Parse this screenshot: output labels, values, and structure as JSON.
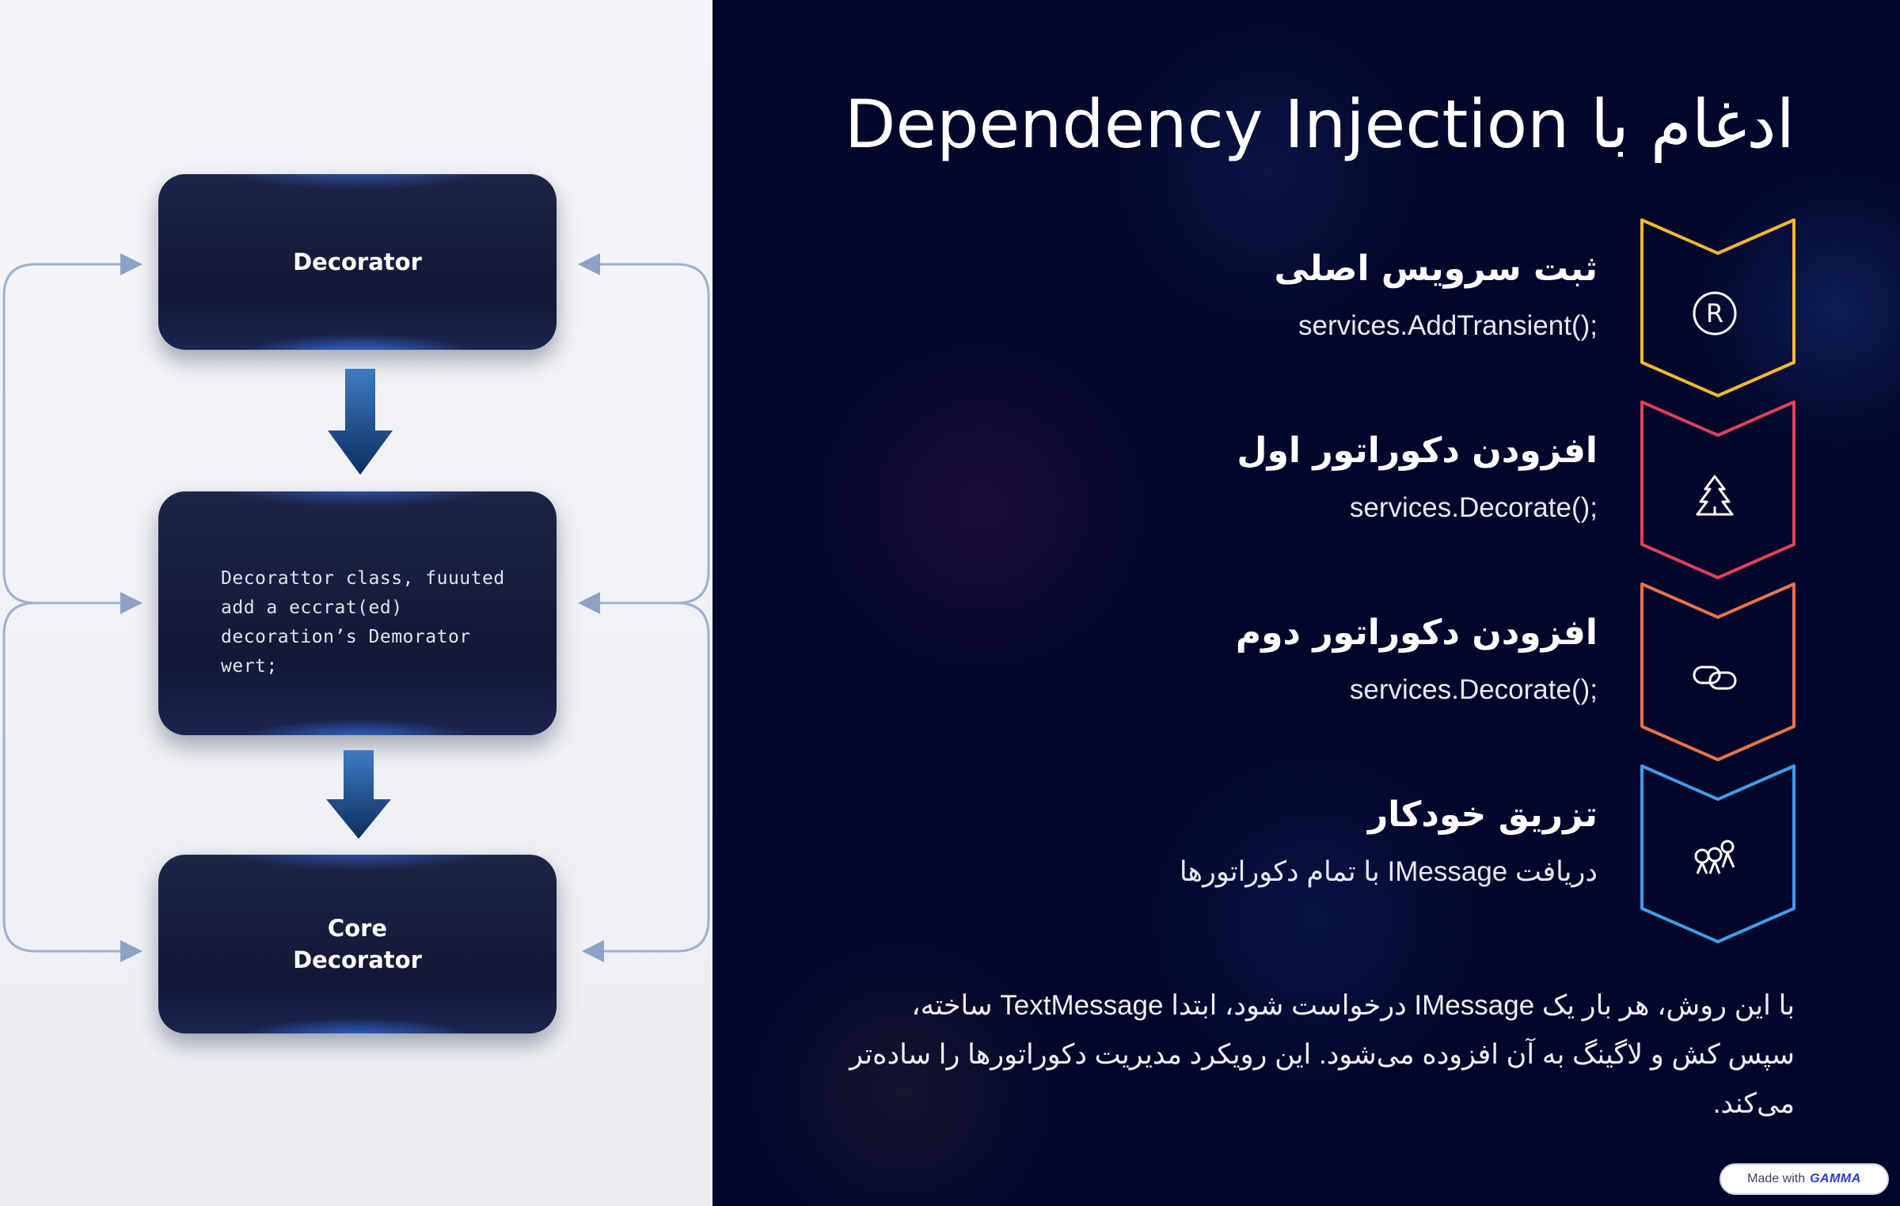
{
  "diagram": {
    "top_box_label": "Decorator",
    "middle_box_code": [
      "Decorattor class, fuuuted",
      "add a eccrat(ed)",
      "decoration’s Demorator",
      "wert;"
    ],
    "bottom_box_label_lines": [
      "Core",
      "Decorator"
    ]
  },
  "title": "ادغام با Dependency Injection",
  "steps": [
    {
      "heading": "ثبت سرویس اصلی",
      "description": "services.AddTransient();",
      "icon": "registered-icon",
      "color": "#f5b82e"
    },
    {
      "heading": "افزودن دکوراتور اول",
      "description": "services.Decorate();",
      "icon": "tree-icon",
      "color": "#e0405a"
    },
    {
      "heading": "افزودن دکوراتور دوم",
      "description": "services.Decorate();",
      "icon": "link-icon",
      "color": "#e8734a"
    },
    {
      "heading": "تزریق خودکار",
      "description": "دریافت IMessage با تمام دکوراتورها",
      "icon": "network-icon",
      "color": "#3f9ce8"
    }
  ],
  "summary": "با این روش، هر بار یک IMessage درخواست شود، ابتدا TextMessage ساخته، سپس کش و لاگینگ به آن افزوده می‌شود. این رویکرد مدیریت دکوراتورها را ساده‌تر می‌کند.",
  "badge": {
    "prefix": "Made with",
    "brand": "GAMMA"
  }
}
